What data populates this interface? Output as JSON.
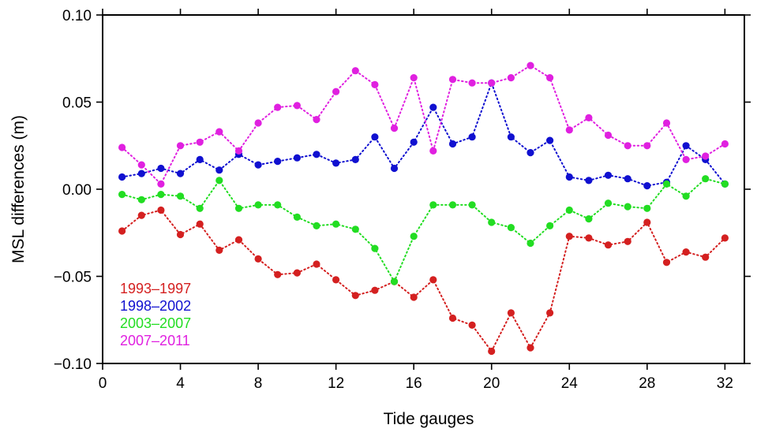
{
  "chart_data": {
    "type": "scatter",
    "style": "dotted-line-with-markers",
    "xlabel": "Tide gauges",
    "ylabel": "MSL differences (m)",
    "xlim": [
      0,
      33
    ],
    "ylim": [
      -0.1,
      0.1
    ],
    "xticks": [
      0,
      4,
      8,
      12,
      16,
      20,
      24,
      28,
      32
    ],
    "xtick_labels": [
      "0",
      "4",
      "8",
      "12",
      "16",
      "20",
      "24",
      "28",
      "32"
    ],
    "yticks": [
      -0.1,
      -0.05,
      0.0,
      0.05,
      0.1
    ],
    "ytick_labels": [
      "−0.10",
      "−0.05",
      "0.00",
      "0.05",
      "0.10"
    ],
    "grid": false,
    "legend_placement": "bottom-left",
    "x": [
      1,
      2,
      3,
      4,
      5,
      6,
      7,
      8,
      9,
      10,
      11,
      12,
      13,
      14,
      15,
      16,
      17,
      18,
      19,
      20,
      21,
      22,
      23,
      24,
      25,
      26,
      27,
      28,
      29,
      30,
      31,
      32
    ],
    "series": [
      {
        "name": "1993–1997",
        "color": "#d42020",
        "values": [
          -0.024,
          -0.015,
          -0.012,
          -0.026,
          -0.02,
          -0.035,
          -0.029,
          -0.04,
          -0.049,
          -0.048,
          -0.043,
          -0.052,
          -0.061,
          -0.058,
          -0.053,
          -0.062,
          -0.052,
          -0.074,
          -0.078,
          -0.093,
          -0.071,
          -0.091,
          -0.071,
          -0.027,
          -0.028,
          -0.032,
          -0.03,
          -0.019,
          -0.042,
          -0.036,
          -0.039,
          -0.028
        ]
      },
      {
        "name": "1998–2002",
        "color": "#1010d0",
        "values": [
          0.007,
          0.009,
          0.012,
          0.009,
          0.017,
          0.011,
          0.02,
          0.014,
          0.016,
          0.018,
          0.02,
          0.015,
          0.017,
          0.03,
          0.012,
          0.027,
          0.047,
          0.026,
          0.03,
          0.061,
          0.03,
          0.021,
          0.028,
          0.007,
          0.005,
          0.008,
          0.006,
          0.002,
          0.004,
          0.025,
          0.017,
          0.003
        ]
      },
      {
        "name": "2003–2007",
        "color": "#22dd22",
        "values": [
          -0.003,
          -0.006,
          -0.003,
          -0.004,
          -0.011,
          0.005,
          -0.011,
          -0.009,
          -0.009,
          -0.016,
          -0.021,
          -0.02,
          -0.023,
          -0.034,
          -0.053,
          -0.027,
          -0.009,
          -0.009,
          -0.009,
          -0.019,
          -0.022,
          -0.031,
          -0.021,
          -0.012,
          -0.017,
          -0.008,
          -0.01,
          -0.011,
          0.003,
          -0.004,
          0.006,
          0.003
        ]
      },
      {
        "name": "2007–2011",
        "color": "#e020e0",
        "values": [
          0.024,
          0.014,
          0.003,
          0.025,
          0.027,
          0.033,
          0.022,
          0.038,
          0.047,
          0.048,
          0.04,
          0.056,
          0.068,
          0.06,
          0.035,
          0.064,
          0.022,
          0.063,
          0.061,
          0.061,
          0.064,
          0.071,
          0.064,
          0.034,
          0.041,
          0.031,
          0.025,
          0.025,
          0.038,
          0.017,
          0.019,
          0.026
        ]
      }
    ]
  }
}
